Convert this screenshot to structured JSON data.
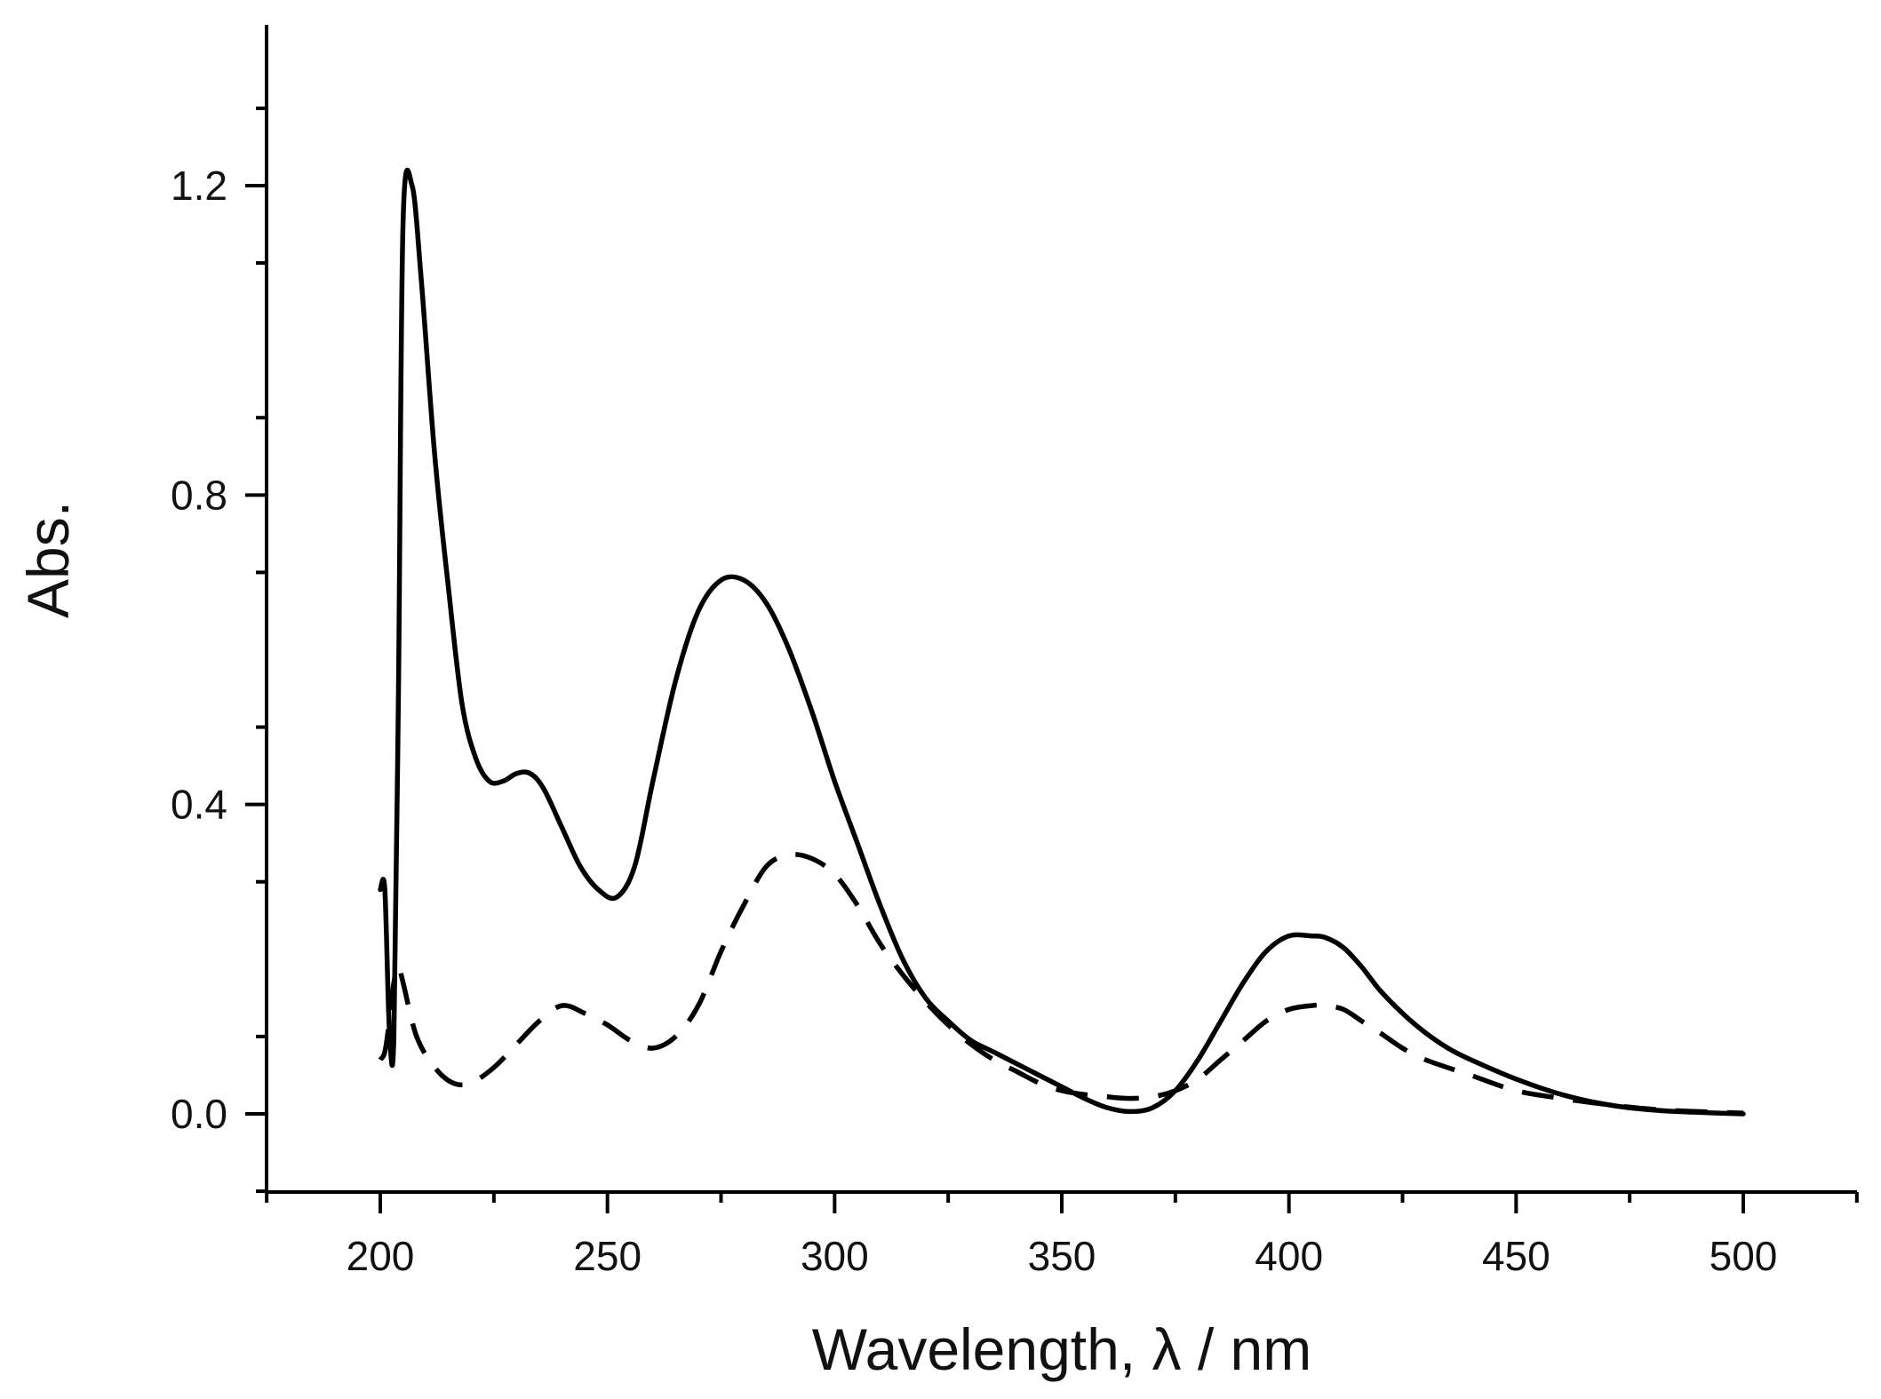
{
  "chart_data": {
    "type": "line",
    "title": "",
    "xlabel": "Wavelength, λ / nm",
    "ylabel": "Abs.",
    "xlim": [
      175,
      525
    ],
    "ylim": [
      -0.1,
      1.4
    ],
    "x_ticks": [
      200,
      250,
      300,
      350,
      400,
      450,
      500
    ],
    "x_tick_labels": [
      "200",
      "250",
      "300",
      "350",
      "400",
      "450",
      "500"
    ],
    "x_minor_step": 25,
    "y_ticks": [
      0.0,
      0.4,
      0.8,
      1.2
    ],
    "y_tick_labels": [
      "0.0",
      "0.4",
      "0.8",
      "1.2"
    ],
    "y_minor_step": 0.2,
    "grid": false,
    "legend": "none",
    "series": [
      {
        "style": "solid",
        "color": "#000000",
        "x": [
          200,
          201,
          202,
          203,
          204,
          205,
          207,
          209,
          212,
          215,
          218,
          221,
          224,
          227,
          230,
          233,
          236,
          240,
          244,
          248,
          252,
          256,
          260,
          265,
          270,
          275,
          280,
          285,
          290,
          295,
          300,
          305,
          310,
          315,
          320,
          325,
          330,
          335,
          340,
          345,
          350,
          355,
          360,
          365,
          370,
          375,
          380,
          385,
          390,
          395,
          400,
          405,
          408,
          412,
          416,
          420,
          425,
          430,
          435,
          440,
          450,
          460,
          470,
          480,
          490,
          500
        ],
        "y": [
          0.29,
          0.29,
          0.11,
          0.1,
          0.55,
          1.15,
          1.2,
          1.08,
          0.85,
          0.68,
          0.53,
          0.46,
          0.43,
          0.43,
          0.44,
          0.44,
          0.42,
          0.37,
          0.32,
          0.29,
          0.28,
          0.32,
          0.43,
          0.56,
          0.65,
          0.69,
          0.69,
          0.66,
          0.6,
          0.52,
          0.43,
          0.35,
          0.27,
          0.2,
          0.15,
          0.12,
          0.095,
          0.08,
          0.065,
          0.05,
          0.035,
          0.02,
          0.008,
          0.003,
          0.008,
          0.03,
          0.07,
          0.12,
          0.17,
          0.21,
          0.23,
          0.23,
          0.228,
          0.215,
          0.19,
          0.16,
          0.13,
          0.105,
          0.085,
          0.07,
          0.045,
          0.025,
          0.012,
          0.005,
          0.002,
          0.0
        ]
      },
      {
        "style": "dashed",
        "color": "#000000",
        "x": [
          200,
          201,
          202,
          203,
          204,
          205,
          208,
          212,
          216,
          220,
          225,
          230,
          235,
          240,
          245,
          250,
          255,
          260,
          265,
          270,
          275,
          280,
          285,
          290,
          295,
          300,
          305,
          310,
          315,
          320,
          325,
          330,
          335,
          340,
          345,
          350,
          355,
          360,
          365,
          370,
          375,
          380,
          385,
          390,
          395,
          400,
          405,
          408,
          412,
          416,
          420,
          425,
          430,
          440,
          450,
          460,
          470,
          480,
          490,
          500
        ],
        "y": [
          0.07,
          0.08,
          0.12,
          0.17,
          0.19,
          0.17,
          0.1,
          0.06,
          0.04,
          0.04,
          0.06,
          0.09,
          0.12,
          0.14,
          0.13,
          0.115,
          0.095,
          0.085,
          0.1,
          0.14,
          0.21,
          0.27,
          0.32,
          0.335,
          0.33,
          0.31,
          0.27,
          0.22,
          0.18,
          0.145,
          0.115,
          0.09,
          0.07,
          0.055,
          0.04,
          0.03,
          0.025,
          0.022,
          0.02,
          0.022,
          0.03,
          0.045,
          0.07,
          0.095,
          0.12,
          0.135,
          0.14,
          0.14,
          0.135,
          0.12,
          0.105,
          0.085,
          0.07,
          0.05,
          0.03,
          0.02,
          0.012,
          0.006,
          0.003,
          0.001
        ]
      }
    ]
  }
}
